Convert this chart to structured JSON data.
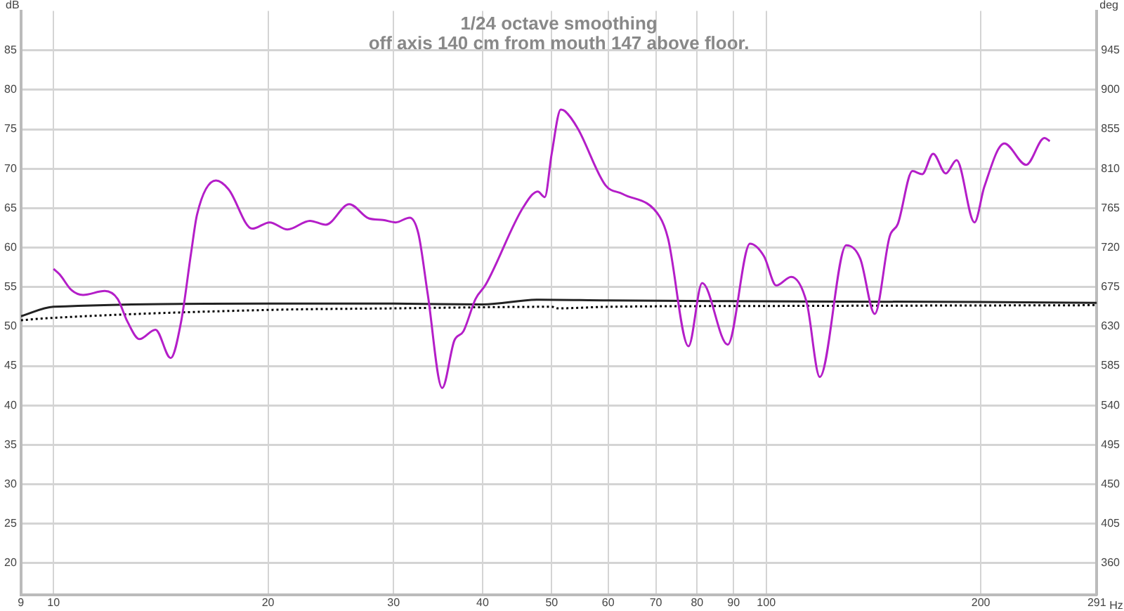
{
  "chart_data": {
    "type": "line",
    "title": "1/24 octave smoothing",
    "subtitle": "off axis 140 cm from mouth 147 above floor.",
    "xlabel": "Hz",
    "ylabel": "dB",
    "y2label": "deg",
    "log": "x",
    "grid": true,
    "xlim": [
      9,
      291
    ],
    "xticks": [
      9,
      10,
      20,
      30,
      40,
      50,
      60,
      70,
      80,
      90,
      100,
      200,
      291
    ],
    "ylim": [
      16,
      90
    ],
    "yticks": [
      20,
      25,
      30,
      35,
      40,
      45,
      50,
      55,
      60,
      65,
      70,
      75,
      80,
      85
    ],
    "y2lim": [
      324,
      990
    ],
    "y2ticks": [
      360,
      405,
      450,
      495,
      540,
      585,
      630,
      675,
      720,
      765,
      810,
      855,
      900,
      945
    ],
    "series": [
      {
        "color": "#b41ec8",
        "line_style": "solid",
        "x": [
          10,
          10.2,
          10.6,
          11.0,
          11.8,
          12.3,
          12.7,
          13.2,
          13.9,
          14.6,
          15.1,
          15.6,
          15.9,
          16.9,
          17.6,
          19.0,
          20.1,
          21.3,
          22.9,
          24.1,
          26.0,
          27.7,
          29.0,
          30.2,
          31.6,
          32.5,
          33.5,
          35.1,
          36.5,
          37.6,
          39.1,
          40.4,
          45.6,
          47.8,
          48.9,
          50.0,
          51.5,
          52.2,
          54.4,
          59.5,
          62.9,
          70.9,
          72.8,
          77.8,
          81.3,
          88.3,
          94.9,
          99.3,
          103.3,
          108.4,
          114,
          118.9,
          129.5,
          135.5,
          142,
          149,
          153,
          160.4,
          165.5,
          171.5,
          178.6,
          185,
          196,
          202.3,
          215.8,
          231.6,
          245.7,
          250
        ],
        "values": [
          57.3,
          56.6,
          54.6,
          54.0,
          54.5,
          53.5,
          50.6,
          48.4,
          49.6,
          46.0,
          50.6,
          59.4,
          64.2,
          68.5,
          67.4,
          62.4,
          63.2,
          62.3,
          63.4,
          62.9,
          65.5,
          63.7,
          63.5,
          63.2,
          63.8,
          61.8,
          54.1,
          42.2,
          48.2,
          49.4,
          53.5,
          55.3,
          65.1,
          67.1,
          66.4,
          71.9,
          77.5,
          77.3,
          75.1,
          67.9,
          66.8,
          63.9,
          61.2,
          47.5,
          55.5,
          47.7,
          60.5,
          58.9,
          55.2,
          56.3,
          53.0,
          43.6,
          60.3,
          58.6,
          51.6,
          61.4,
          63.0,
          69.7,
          69.3,
          71.9,
          69.4,
          71.1,
          63.2,
          67.7,
          73.2,
          70.5,
          73.9,
          73.5
        ]
      },
      {
        "color": "#222222",
        "line_style": "solid",
        "x": [
          9,
          10,
          20,
          30,
          40,
          48,
          60,
          100,
          200,
          291
        ],
        "values": [
          51.3,
          52.5,
          52.9,
          52.9,
          52.8,
          53.4,
          53.3,
          53.2,
          53.1,
          53.0
        ]
      },
      {
        "color": "#000000",
        "line_style": "dotted",
        "x": [
          9,
          10,
          20,
          30,
          50,
          51,
          60,
          100,
          291
        ],
        "values": [
          50.8,
          51.1,
          52.1,
          52.3,
          52.5,
          52.3,
          52.5,
          52.6,
          52.7
        ]
      }
    ]
  }
}
